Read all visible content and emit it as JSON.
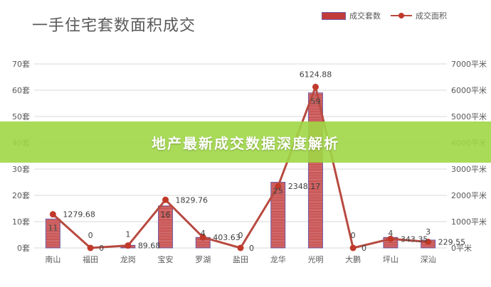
{
  "title": "一手住宅套数面积成交",
  "legend": {
    "bar": "成交套数",
    "line": "成交面积"
  },
  "banner": "地产最新成交数据深度解析",
  "colors": {
    "bar": "#c23a3a",
    "bar_stroke": "#6f5ea8",
    "line": "#b84a40",
    "marker": "#c0392b",
    "grid": "#d9d9d9",
    "text": "#595959",
    "banner": "#a0d746"
  },
  "chart_data": {
    "type": "bar",
    "title": "一手住宅套数面积成交",
    "categories": [
      "南山",
      "福田",
      "龙岗",
      "宝安",
      "罗湖",
      "盐田",
      "龙华",
      "光明",
      "大鹏",
      "坪山",
      "深汕"
    ],
    "series": [
      {
        "name": "成交套数",
        "type": "bar",
        "axis": "left",
        "values": [
          11,
          0,
          1,
          16,
          4,
          0,
          25,
          59,
          0,
          4,
          3
        ],
        "labels": [
          "11",
          "0",
          "1",
          "16",
          "4",
          "0",
          "25",
          "59",
          "0",
          "4",
          "3"
        ]
      },
      {
        "name": "成交面积",
        "type": "line",
        "axis": "right",
        "values": [
          1279.68,
          0,
          89.68,
          1829.76,
          403.63,
          0,
          2348.17,
          6124.88,
          0,
          343.35,
          229.55
        ],
        "labels": [
          "1279.68",
          "0",
          "89.68",
          "1829.76",
          "403.63",
          "0",
          "2348.17",
          "6124.88",
          "0",
          "343.35",
          "229.55"
        ]
      }
    ],
    "y_left": {
      "ylim": [
        0,
        70
      ],
      "ticks": [
        "0套",
        "10套",
        "20套",
        "30套",
        "40套",
        "50套",
        "60套",
        "70套"
      ]
    },
    "y_right": {
      "ylim": [
        0,
        7000
      ],
      "ticks": [
        "0平米",
        "1000平米",
        "2000平米",
        "3000平米",
        "4000平米",
        "5000平米",
        "6000平米",
        "7000平米"
      ]
    },
    "grid": true,
    "legend_position": "top-right"
  }
}
